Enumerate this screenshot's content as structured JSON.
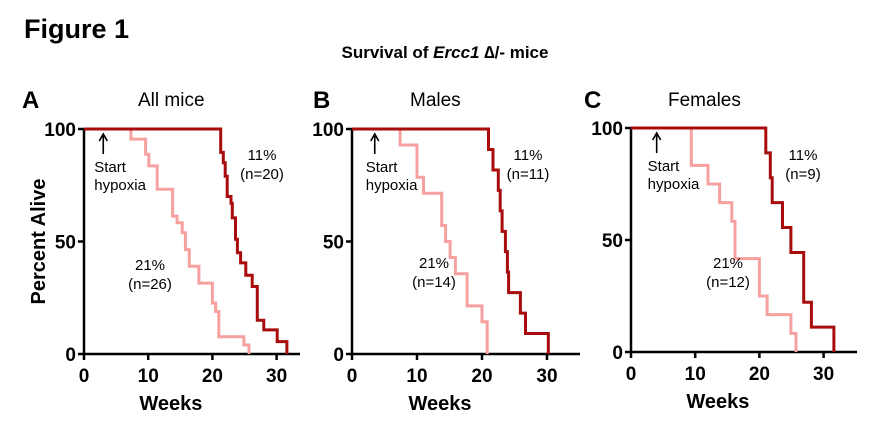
{
  "figure": {
    "label": "Figure 1",
    "title_prefix": "Survival of ",
    "title_gene": "Ercc1",
    "title_suffix": " ∆/- mice",
    "colors": {
      "hypoxia_11": "#a80c0c",
      "normoxia_21": "#f7a0a0",
      "axis": "#000000"
    }
  },
  "chart_data": [
    {
      "type": "line",
      "step": true,
      "panel": "A",
      "title": "All mice",
      "xlabel": "Weeks",
      "ylabel": "Percent Alive",
      "xlim": [
        0,
        34
      ],
      "ylim": [
        0,
        100
      ],
      "xticks": [
        0,
        10,
        20,
        30
      ],
      "yticks": [
        0,
        50,
        100
      ],
      "grid": false,
      "annotations": [
        {
          "text": [
            "Start",
            "hypoxia"
          ],
          "arrow": true,
          "x": 3
        }
      ],
      "series": [
        {
          "name": "21%",
          "label": [
            "21%",
            "(n=26)"
          ],
          "n": 26,
          "color": "#f7a0a0",
          "x": [
            0,
            7.3,
            9.6,
            10.1,
            11.4,
            11.4,
            13.8,
            14.5,
            15.3,
            15.8,
            16.4,
            17.9,
            20.0,
            20.5,
            21.0,
            24.9,
            25.7
          ],
          "y": [
            100,
            95.5,
            88.8,
            83.6,
            77.7,
            73.2,
            61.3,
            58.3,
            53.9,
            46.4,
            39.0,
            31.5,
            22.6,
            18.9,
            7.7,
            4.0,
            0
          ]
        },
        {
          "name": "11%",
          "label": [
            "11%",
            "(n=20)"
          ],
          "n": 20,
          "color": "#a80c0c",
          "x": [
            0,
            21.3,
            21.7,
            22.0,
            22.3,
            22.9,
            23.1,
            23.6,
            23.9,
            24.4,
            25.2,
            26.2,
            27.0,
            28.0,
            30.1,
            31.6
          ],
          "y": [
            100,
            89.6,
            85.0,
            79.0,
            70.0,
            67.0,
            60.5,
            51.0,
            45.0,
            40.5,
            35.0,
            30.0,
            15.0,
            10.7,
            5.5,
            0
          ]
        }
      ]
    },
    {
      "type": "line",
      "step": true,
      "panel": "B",
      "title": "Males",
      "xlabel": "Weeks",
      "ylabel": "",
      "xlim": [
        0,
        35
      ],
      "ylim": [
        0,
        100
      ],
      "xticks": [
        0,
        10,
        20,
        30
      ],
      "yticks": [
        0,
        50,
        100
      ],
      "grid": false,
      "annotations": [
        {
          "text": [
            "Start",
            "hypoxia"
          ],
          "arrow": true,
          "x": 3.5
        }
      ],
      "series": [
        {
          "name": "21%",
          "label": [
            "21%",
            "(n=14)"
          ],
          "n": 14,
          "color": "#f7a0a0",
          "x": [
            0,
            7.4,
            10.0,
            11.0,
            13.8,
            14.4,
            15.1,
            15.9,
            17.7,
            20.0,
            20.8
          ],
          "y": [
            100,
            92.9,
            78.6,
            71.4,
            57.1,
            50.0,
            42.9,
            35.7,
            21.4,
            14.3,
            0
          ]
        },
        {
          "name": "11%",
          "label": [
            "11%",
            "(n=11)"
          ],
          "n": 11,
          "color": "#a80c0c",
          "x": [
            0,
            21.0,
            21.7,
            22.5,
            22.8,
            23.1,
            23.6,
            23.9,
            24.1,
            25.9,
            26.7,
            30.2
          ],
          "y": [
            100,
            90.9,
            81.8,
            72.7,
            63.6,
            54.5,
            45.5,
            36.4,
            27.3,
            18.2,
            9.1,
            0
          ]
        }
      ]
    },
    {
      "type": "line",
      "step": true,
      "panel": "C",
      "title": "Females",
      "xlabel": "Weeks",
      "ylabel": "",
      "xlim": [
        0,
        35
      ],
      "ylim": [
        0,
        100
      ],
      "xticks": [
        0,
        10,
        20,
        30
      ],
      "yticks": [
        0,
        50,
        100
      ],
      "grid": false,
      "annotations": [
        {
          "text": [
            "Start",
            "hypoxia"
          ],
          "arrow": true,
          "x": 4
        }
      ],
      "series": [
        {
          "name": "21%",
          "label": [
            "21%",
            "(n=12)"
          ],
          "n": 12,
          "color": "#f7a0a0",
          "x": [
            0,
            9.4,
            12.0,
            13.8,
            15.7,
            16.2,
            20.0,
            21.2,
            24.9,
            25.7
          ],
          "y": [
            100,
            83.3,
            75.0,
            66.7,
            58.3,
            41.7,
            25.0,
            16.7,
            8.3,
            0
          ]
        },
        {
          "name": "11%",
          "label": [
            "11%",
            "(n=9)"
          ],
          "n": 9,
          "color": "#a80c0c",
          "x": [
            0,
            21.0,
            21.7,
            22.0,
            23.6,
            24.9,
            26.9,
            28.1,
            31.6
          ],
          "y": [
            100,
            88.9,
            77.8,
            66.7,
            55.6,
            44.4,
            22.2,
            11.1,
            0
          ]
        }
      ]
    }
  ]
}
